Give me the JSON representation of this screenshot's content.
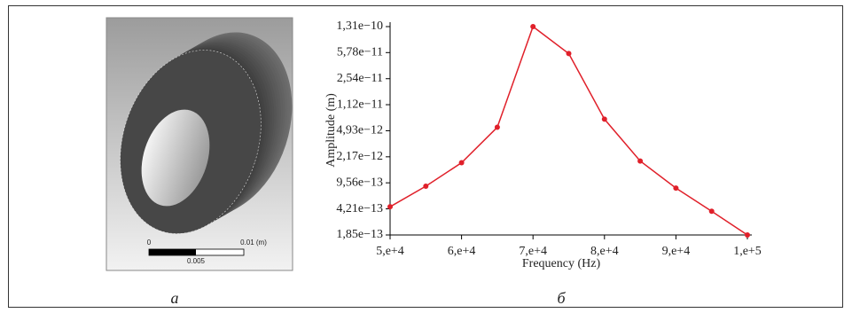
{
  "image": {
    "scale_labels": [
      "0",
      "0.01 (m)",
      "0.005"
    ]
  },
  "panel_labels": [
    "а",
    "б"
  ],
  "chart_data": {
    "type": "line",
    "x_label": "Frequency (Hz)",
    "y_label": "Amplitude (m)",
    "x": [
      50000,
      55000,
      60000,
      65000,
      70000,
      75000,
      80000,
      85000,
      90000,
      95000,
      100000
    ],
    "values": [
      4.5e-13,
      8.6e-13,
      1.8e-12,
      5.5e-12,
      1.31e-10,
      5.6e-11,
      7.1e-12,
      1.9e-12,
      8.1e-13,
      3.9e-13,
      1.85e-13
    ],
    "color": "#e0202a",
    "xlim": [
      50000,
      100000
    ],
    "xticks": [
      {
        "value": 50000,
        "label": "5,e+4"
      },
      {
        "value": 60000,
        "label": "6,e+4"
      },
      {
        "value": 70000,
        "label": "7,e+4"
      },
      {
        "value": 80000,
        "label": "8,e+4"
      },
      {
        "value": 90000,
        "label": "9,e+4"
      },
      {
        "value": 100000,
        "label": "1,e+5"
      }
    ],
    "ylim": [
      1.85e-13,
      1.31e-10
    ],
    "log_y": true,
    "yticks": [
      {
        "value": 1.85e-13,
        "label": "1,85e−13"
      },
      {
        "value": 4.21e-13,
        "label": "4,21e−13"
      },
      {
        "value": 9.56e-13,
        "label": "9,56e−13"
      },
      {
        "value": 2.17e-12,
        "label": "2,17e−12"
      },
      {
        "value": 4.93e-12,
        "label": "4,93e−12"
      },
      {
        "value": 1.12e-11,
        "label": "1,12e−11"
      },
      {
        "value": 2.54e-11,
        "label": "2,54e−11"
      },
      {
        "value": 5.78e-11,
        "label": "5,78e−11"
      },
      {
        "value": 1.31e-10,
        "label": "1,31e−10"
      }
    ]
  }
}
